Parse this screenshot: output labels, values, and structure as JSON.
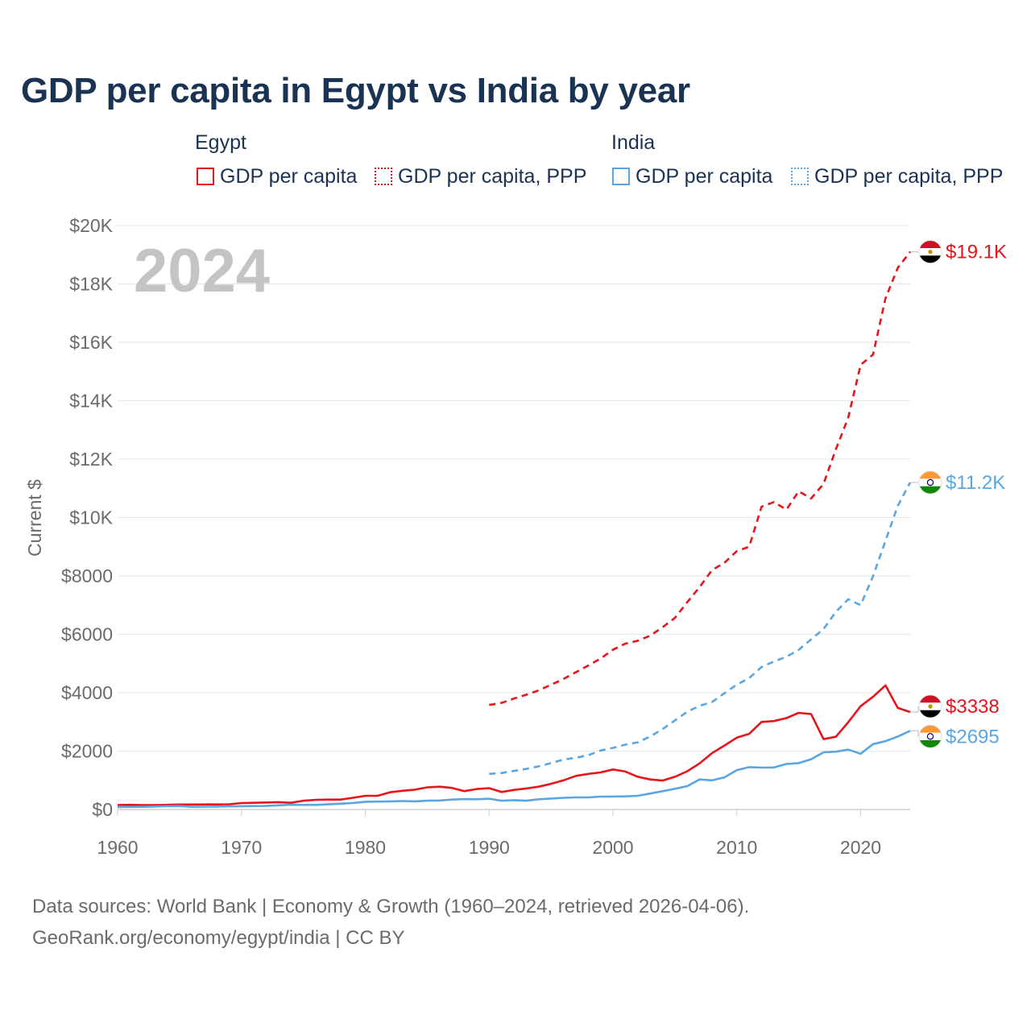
{
  "title": "GDP per capita in Egypt vs India by year",
  "legend": {
    "egypt": {
      "label": "Egypt",
      "solid": "GDP per capita",
      "dotted": "GDP per capita, PPP",
      "color": "#e8141b"
    },
    "india": {
      "label": "India",
      "solid": "GDP per capita",
      "dotted": "GDP per capita, PPP",
      "color": "#5aa6e2"
    }
  },
  "source": {
    "line1": "Data sources: World Bank | Economy & Growth (1960–2024, retrieved 2026-04-06).",
    "line2": "GeoRank.org/economy/egypt/india | CC BY"
  },
  "chart_data": {
    "type": "line",
    "title": "GDP per capita in Egypt vs India by year",
    "year_label": "2024",
    "ylabel": "Current $",
    "xlim": [
      1960,
      2024
    ],
    "ylim": [
      0,
      20000
    ],
    "x_ticks": [
      1960,
      1970,
      1980,
      1990,
      2000,
      2010,
      2020
    ],
    "y_ticks": [
      {
        "value": 0,
        "label": "$0"
      },
      {
        "value": 2000,
        "label": "$2000"
      },
      {
        "value": 4000,
        "label": "$4000"
      },
      {
        "value": 6000,
        "label": "$6000"
      },
      {
        "value": 8000,
        "label": "$8000"
      },
      {
        "value": 10000,
        "label": "$10K"
      },
      {
        "value": 12000,
        "label": "$12K"
      },
      {
        "value": 14000,
        "label": "$14K"
      },
      {
        "value": 16000,
        "label": "$16K"
      },
      {
        "value": 18000,
        "label": "$18K"
      },
      {
        "value": 20000,
        "label": "$20K"
      }
    ],
    "grid": true,
    "series": [
      {
        "name": "Egypt GDP per capita",
        "color": "#e8141b",
        "style": "solid",
        "end_label": "$3338",
        "x": [
          1960,
          1961,
          1962,
          1963,
          1964,
          1965,
          1966,
          1967,
          1968,
          1969,
          1970,
          1971,
          1972,
          1973,
          1974,
          1975,
          1976,
          1977,
          1978,
          1979,
          1980,
          1981,
          1982,
          1983,
          1984,
          1985,
          1986,
          1987,
          1988,
          1989,
          1990,
          1991,
          1992,
          1993,
          1994,
          1995,
          1996,
          1997,
          1998,
          1999,
          2000,
          2001,
          2002,
          2003,
          2004,
          2005,
          2006,
          2007,
          2008,
          2009,
          2010,
          2011,
          2012,
          2013,
          2014,
          2015,
          2016,
          2017,
          2018,
          2019,
          2020,
          2021,
          2022,
          2023,
          2024
        ],
        "values": [
          155,
          160,
          150,
          150,
          160,
          170,
          170,
          175,
          175,
          180,
          220,
          230,
          240,
          250,
          230,
          300,
          330,
          340,
          340,
          400,
          470,
          470,
          590,
          640,
          680,
          760,
          780,
          740,
          630,
          700,
          730,
          600,
          670,
          720,
          780,
          880,
          1000,
          1150,
          1220,
          1270,
          1370,
          1300,
          1120,
          1030,
          990,
          1120,
          1310,
          1580,
          1930,
          2190,
          2460,
          2590,
          3000,
          3030,
          3130,
          3310,
          3270,
          2410,
          2490,
          2990,
          3540,
          3860,
          4250,
          3480,
          3338
        ]
      },
      {
        "name": "Egypt GDP per capita, PPP",
        "color": "#e8141b",
        "style": "dashed",
        "end_label": "$19.1K",
        "x": [
          1990,
          1991,
          1992,
          1993,
          1994,
          1995,
          1996,
          1997,
          1998,
          1999,
          2000,
          2001,
          2002,
          2003,
          2004,
          2005,
          2006,
          2007,
          2008,
          2009,
          2010,
          2011,
          2012,
          2013,
          2014,
          2015,
          2016,
          2017,
          2018,
          2019,
          2020,
          2021,
          2022,
          2023,
          2024
        ],
        "values": [
          3580,
          3650,
          3800,
          3930,
          4080,
          4270,
          4470,
          4700,
          4930,
          5170,
          5470,
          5680,
          5780,
          5950,
          6240,
          6560,
          7100,
          7620,
          8200,
          8450,
          8850,
          9000,
          10370,
          10530,
          10270,
          10900,
          10650,
          11150,
          12340,
          13420,
          15230,
          15580,
          17500,
          18550,
          19100
        ]
      },
      {
        "name": "India GDP per capita",
        "color": "#5aa6e2",
        "style": "solid",
        "end_label": "$2695",
        "x": [
          1960,
          1961,
          1962,
          1963,
          1964,
          1965,
          1966,
          1967,
          1968,
          1969,
          1970,
          1971,
          1972,
          1973,
          1974,
          1975,
          1976,
          1977,
          1978,
          1979,
          1980,
          1981,
          1982,
          1983,
          1984,
          1985,
          1986,
          1987,
          1988,
          1989,
          1990,
          1991,
          1992,
          1993,
          1994,
          1995,
          1996,
          1997,
          1998,
          1999,
          2000,
          2001,
          2002,
          2003,
          2004,
          2005,
          2006,
          2007,
          2008,
          2009,
          2010,
          2011,
          2012,
          2013,
          2014,
          2015,
          2016,
          2017,
          2018,
          2019,
          2020,
          2021,
          2022,
          2023,
          2024
        ],
        "values": [
          84,
          89,
          92,
          101,
          116,
          119,
          90,
          96,
          100,
          108,
          112,
          118,
          122,
          143,
          162,
          158,
          158,
          177,
          200,
          223,
          266,
          270,
          280,
          290,
          280,
          300,
          310,
          340,
          355,
          350,
          370,
          300,
          320,
          300,
          350,
          375,
          400,
          415,
          415,
          440,
          445,
          450,
          470,
          545,
          625,
          710,
          800,
          1030,
          1000,
          1100,
          1350,
          1450,
          1435,
          1440,
          1560,
          1590,
          1720,
          1960,
          1980,
          2050,
          1910,
          2240,
          2340,
          2500,
          2695
        ]
      },
      {
        "name": "India GDP per capita, PPP",
        "color": "#5aa6e2",
        "style": "dashed",
        "end_label": "$11.2K",
        "x": [
          1990,
          1991,
          1992,
          1993,
          1994,
          1995,
          1996,
          1997,
          1998,
          1999,
          2000,
          2001,
          2002,
          2003,
          2004,
          2005,
          2006,
          2007,
          2008,
          2009,
          2010,
          2011,
          2012,
          2013,
          2014,
          2015,
          2016,
          2017,
          2018,
          2019,
          2020,
          2021,
          2022,
          2023,
          2024
        ],
        "values": [
          1220,
          1250,
          1320,
          1390,
          1480,
          1590,
          1710,
          1770,
          1860,
          2020,
          2110,
          2220,
          2300,
          2500,
          2750,
          3050,
          3350,
          3550,
          3680,
          3980,
          4280,
          4500,
          4880,
          5070,
          5230,
          5470,
          5830,
          6180,
          6770,
          7200,
          7000,
          7990,
          9200,
          10400,
          11200
        ]
      }
    ]
  }
}
